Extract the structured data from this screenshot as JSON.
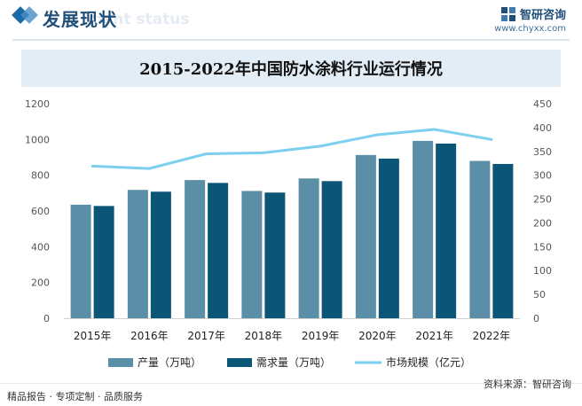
{
  "header": {
    "section_title": "发展现状",
    "ghost_title": "ment status",
    "brand_name": "智研咨询",
    "brand_url": "www.chyxx.com"
  },
  "footer": {
    "left": "精品报告 · 专项定制 · 品质服务",
    "source": "资料来源：智研咨询"
  },
  "colors": {
    "production": "#5b8fa8",
    "demand": "#0b5577",
    "market": "#7ccfee",
    "brand": "#1f4e79"
  },
  "chart_data": {
    "type": "bar",
    "title": "2015-2022年中国防水涂料行业运行情况",
    "categories": [
      "2015年",
      "2016年",
      "2017年",
      "2018年",
      "2019年",
      "2020年",
      "2021年",
      "2022年"
    ],
    "series": [
      {
        "name": "产量（万吨）",
        "type": "bar",
        "axis": "left",
        "values": [
          635,
          718,
          773,
          712,
          782,
          913,
          992,
          880
        ]
      },
      {
        "name": "需求量（万吨）",
        "type": "bar",
        "axis": "left",
        "values": [
          628,
          708,
          757,
          703,
          767,
          893,
          977,
          863
        ]
      },
      {
        "name": "市场规模（亿元）",
        "type": "line",
        "axis": "right",
        "values": [
          319,
          314,
          345,
          347,
          361,
          385,
          396,
          375
        ]
      }
    ],
    "ylim_left": [
      0,
      1200
    ],
    "yticks_left": [
      0,
      200,
      400,
      600,
      800,
      1000,
      1200
    ],
    "ylim_right": [
      0,
      450
    ],
    "yticks_right": [
      0,
      50,
      100,
      150,
      200,
      250,
      300,
      350,
      400,
      450
    ],
    "grid": false,
    "legend_position": "bottom"
  }
}
